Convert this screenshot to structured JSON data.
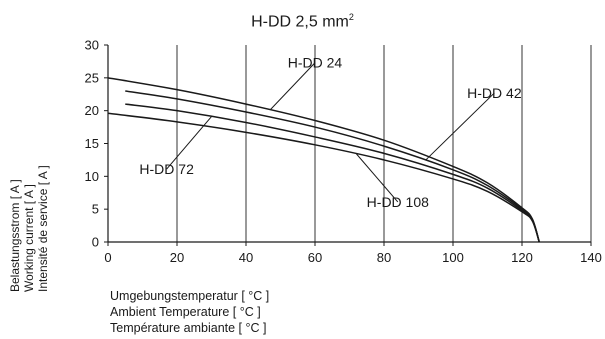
{
  "chart_data": {
    "type": "line",
    "title": "H-DD   2,5 mm",
    "title_sup": "2",
    "ylabel": [
      "Belastungsstrom [ A ]",
      "Working current [ A ]",
      "Intensité de service [ A ]"
    ],
    "xlabel": [
      "Umgebungstemperatur [ °C ]",
      "Ambient Temperature [ °C ]",
      "Température ambiante [ °C ]"
    ],
    "xlim": [
      0,
      140
    ],
    "ylim": [
      0,
      30
    ],
    "xticks": [
      0,
      20,
      40,
      60,
      80,
      100,
      120,
      140
    ],
    "yticks": [
      0,
      5,
      10,
      15,
      20,
      25,
      30
    ],
    "grid": "vertical only",
    "series": [
      {
        "name": "H-DD 24",
        "x": [
          0,
          20,
          40,
          60,
          80,
          100,
          110,
          120,
          123,
          125
        ],
        "y": [
          25.0,
          23.2,
          21.0,
          18.5,
          15.5,
          11.5,
          9.0,
          5.2,
          3.5,
          0
        ]
      },
      {
        "name": "H-DD 42",
        "x": [
          5,
          20,
          40,
          60,
          80,
          100,
          110,
          120,
          123,
          125
        ],
        "y": [
          23.0,
          21.8,
          19.8,
          17.5,
          14.6,
          11.0,
          8.6,
          5.0,
          3.4,
          0
        ]
      },
      {
        "name": "H-DD 72",
        "x": [
          5,
          20,
          40,
          60,
          80,
          100,
          110,
          120,
          123,
          125
        ],
        "y": [
          21.0,
          20.0,
          18.2,
          16.0,
          13.5,
          10.3,
          8.2,
          4.8,
          3.3,
          0
        ]
      },
      {
        "name": "H-DD 108",
        "x": [
          0,
          20,
          40,
          60,
          80,
          100,
          110,
          120,
          123,
          125
        ],
        "y": [
          19.6,
          18.3,
          16.7,
          14.8,
          12.5,
          9.6,
          7.7,
          4.6,
          3.2,
          0
        ]
      }
    ],
    "annotations": [
      {
        "text": "H-DD 24",
        "series": "H-DD 24",
        "at_x": 47,
        "label_at": [
          60,
          27.3
        ]
      },
      {
        "text": "H-DD 42",
        "series": "H-DD 42",
        "at_x": 92,
        "label_at": [
          112,
          22.7
        ]
      },
      {
        "text": "H-DD 72",
        "series": "H-DD 72",
        "at_x": 30,
        "label_at": [
          17,
          11.1
        ]
      },
      {
        "text": "H-DD 108",
        "series": "H-DD 108",
        "at_x": 72,
        "label_at": [
          84,
          6.1
        ]
      }
    ]
  }
}
